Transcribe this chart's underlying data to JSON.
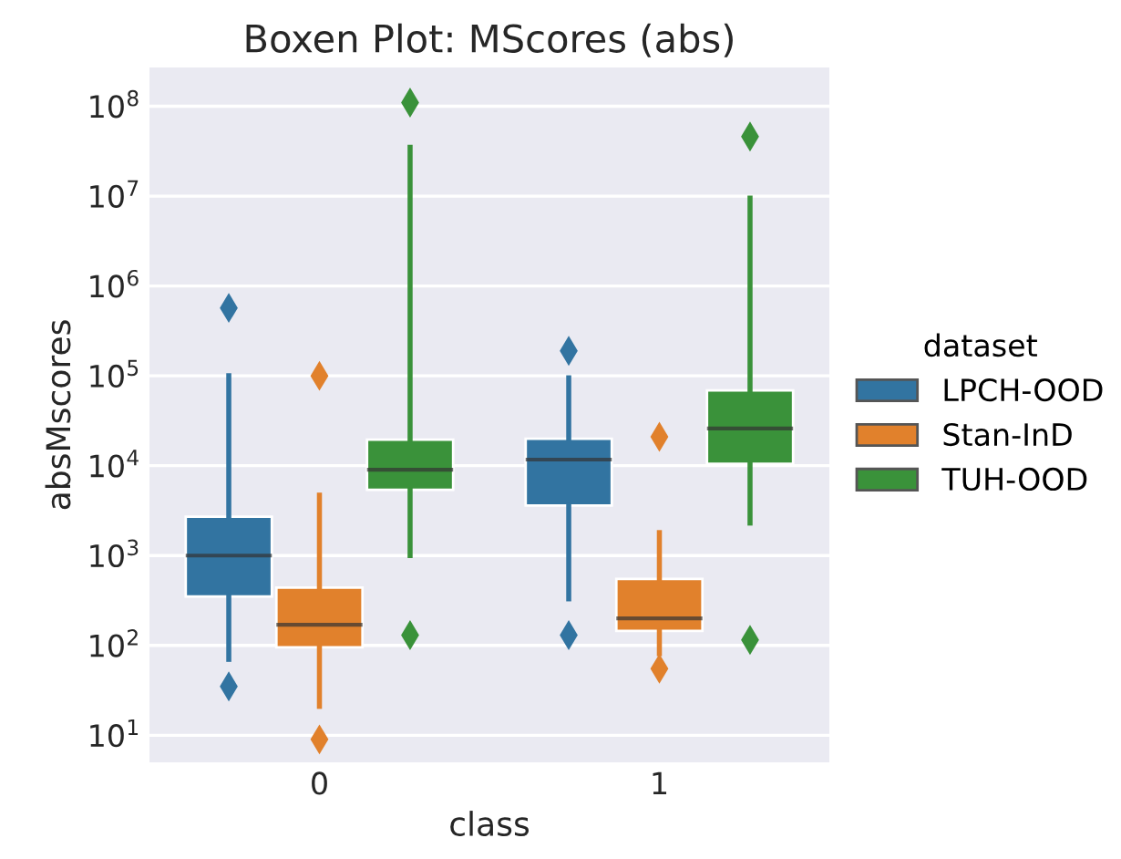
{
  "chart_data": {
    "type": "box",
    "title": "Boxen Plot: MScores (abs)",
    "xlabel": "class",
    "ylabel": "absMscores",
    "legend_title": "dataset",
    "categories": [
      "0",
      "1"
    ],
    "log": "y",
    "ylim": [
      5,
      270000000
    ],
    "yticks": [
      {
        "value": 10,
        "label": "10$^{1}$"
      },
      {
        "value": 100,
        "label": "10$^{2}$"
      },
      {
        "value": 1000,
        "label": "10$^{3}$"
      },
      {
        "value": 10000,
        "label": "10$^{4}$"
      },
      {
        "value": 100000,
        "label": "10$^{5}$"
      },
      {
        "value": 1000000,
        "label": "10$^{6}$"
      },
      {
        "value": 10000000,
        "label": "10$^{7}$"
      },
      {
        "value": 100000000,
        "label": "10$^{8}$"
      }
    ],
    "grid": "y",
    "legend": "right",
    "marker": "diamond",
    "series": [
      {
        "name": "LPCH-OOD",
        "color": "#3274a1",
        "boxes": [
          {
            "low": 70,
            "q1": 350,
            "median": 1000,
            "q3": 2700,
            "high": 100000,
            "outliers": [
              35,
              570000
            ]
          },
          {
            "low": 330,
            "q1": 3600,
            "median": 11700,
            "q3": 20000,
            "high": 95000,
            "outliers": [
              130,
              190000
            ]
          }
        ]
      },
      {
        "name": "Stan-InD",
        "color": "#e1812c",
        "boxes": [
          {
            "low": 21,
            "q1": 95,
            "median": 170,
            "q3": 440,
            "high": 4700,
            "outliers": [
              9,
              100000
            ]
          },
          {
            "low": 81,
            "q1": 145,
            "median": 200,
            "q3": 550,
            "high": 1800,
            "outliers": [
              55,
              21000
            ]
          }
        ]
      },
      {
        "name": "TUH-OOD",
        "color": "#3a923a",
        "boxes": [
          {
            "low": 1000,
            "q1": 5400,
            "median": 9000,
            "q3": 19500,
            "high": 35000000,
            "outliers": [
              130,
              110000000
            ]
          },
          {
            "low": 2300,
            "q1": 10500,
            "median": 26000,
            "q3": 69000,
            "high": 9500000,
            "outliers": [
              115,
              46000000
            ]
          }
        ]
      }
    ]
  }
}
